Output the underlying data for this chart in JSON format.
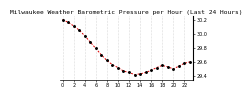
{
  "title": "Milwaukee Weather Barometric Pressure per Hour (Last 24 Hours)",
  "x_values": [
    0,
    1,
    2,
    3,
    4,
    5,
    6,
    7,
    8,
    9,
    10,
    11,
    12,
    13,
    14,
    15,
    16,
    17,
    18,
    19,
    20,
    21,
    22,
    23
  ],
  "y_values": [
    30.2,
    30.16,
    30.11,
    30.05,
    29.97,
    29.88,
    29.79,
    29.7,
    29.62,
    29.56,
    29.52,
    29.47,
    29.45,
    29.42,
    29.43,
    29.45,
    29.48,
    29.52,
    29.55,
    29.53,
    29.5,
    29.54,
    29.58,
    29.6
  ],
  "ylim": [
    29.35,
    30.25
  ],
  "yticks": [
    29.4,
    29.6,
    29.8,
    30.0,
    30.2
  ],
  "ytick_labels": [
    "29.4",
    "29.6",
    "29.8",
    "30.0",
    "30.2"
  ],
  "line_color": "#dd0000",
  "marker_color": "#000000",
  "bg_color": "#ffffff",
  "grid_color": "#bbbbbb",
  "title_fontsize": 4.5,
  "tick_fontsize": 3.5
}
